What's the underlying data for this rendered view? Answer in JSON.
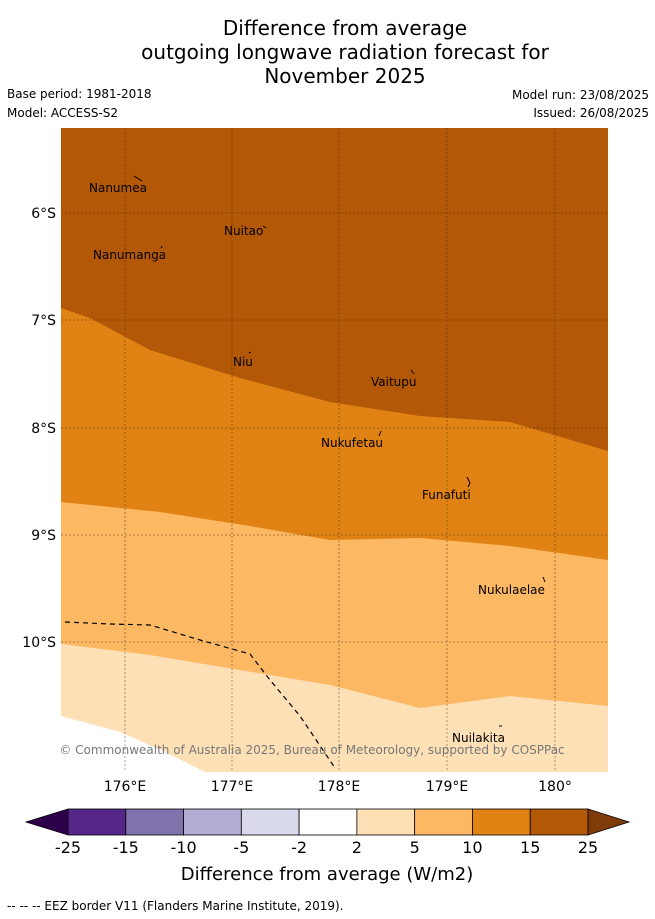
{
  "title": {
    "line1": "Difference from average",
    "line2": "outgoing longwave radiation forecast for",
    "line3": "November 2025"
  },
  "meta": {
    "base_period": "Base period: 1981-2018",
    "model": "Model: ACCESS-S2",
    "model_run": "Model run: 23/08/2025",
    "issued": "Issued: 26/08/2025"
  },
  "map": {
    "lat_labels": [
      "6°S",
      "7°S",
      "8°S",
      "9°S",
      "10°S"
    ],
    "lon_labels": [
      "176°E",
      "177°E",
      "178°E",
      "179°E",
      "180°"
    ],
    "places": [
      "Nanumea",
      "Nuitao",
      "Nanumanga",
      "Niu",
      "Vaitupu",
      "Nukufetau",
      "Funafuti",
      "Nukulaelae",
      "Nuilakita"
    ],
    "copyright": "© Commonwealth of Australia 2025, Bureau of Meteorology, supported by COSPPac",
    "fill_colors": {
      "band_15_25": "#b35806",
      "band_10_15": "#e08214",
      "band_5_10": "#fdb863",
      "band_2_5": "#fee0b6"
    }
  },
  "colorbar": {
    "ticks": [
      "-25",
      "-15",
      "-10",
      "-5",
      "-2",
      "2",
      "5",
      "10",
      "15",
      "25"
    ],
    "colors": [
      "#542788",
      "#8073ac",
      "#b2abd2",
      "#d8daeb",
      "#ffffff",
      "#fee0b6",
      "#fdb863",
      "#e08214",
      "#b35806"
    ],
    "extend_low": "#2d004b",
    "extend_high": "#7f3b08",
    "label": "Difference from average (W/m2)"
  },
  "footer": "--  --  -- EEZ border V11 (Flanders Marine Institute, 2019)."
}
